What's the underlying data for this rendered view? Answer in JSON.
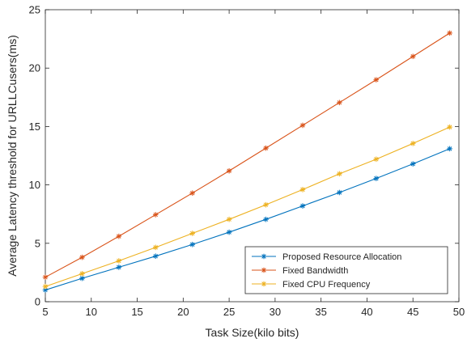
{
  "chart_data": {
    "type": "line",
    "title": "",
    "xlabel": "Task Size(kilo bits)",
    "ylabel": "Average Latency  threshold for URLLCusers(ms)",
    "xlim": [
      5,
      50
    ],
    "ylim": [
      0,
      25
    ],
    "xticks": [
      5,
      10,
      15,
      20,
      25,
      30,
      35,
      40,
      45,
      50
    ],
    "yticks": [
      0,
      5,
      10,
      15,
      20,
      25
    ],
    "grid": false,
    "legend_position": "bottom-right",
    "x": [
      5,
      9,
      13,
      17,
      21,
      25,
      29,
      33,
      37,
      41,
      45,
      49
    ],
    "series": [
      {
        "name": "Proposed Resource Allocation",
        "color": "#0072BD",
        "marker": "asterisk",
        "values": [
          1.0,
          2.0,
          2.95,
          3.9,
          4.9,
          5.95,
          7.05,
          8.2,
          9.35,
          10.55,
          11.8,
          13.1
        ]
      },
      {
        "name": "Fixed Bandwidth",
        "color": "#D95319",
        "marker": "asterisk",
        "values": [
          2.1,
          3.8,
          5.6,
          7.45,
          9.3,
          11.2,
          13.15,
          15.1,
          17.05,
          19.0,
          21.0,
          23.0
        ]
      },
      {
        "name": "Fixed CPU Frequency",
        "color": "#EDB120",
        "marker": "asterisk",
        "values": [
          1.3,
          2.4,
          3.5,
          4.65,
          5.85,
          7.05,
          8.3,
          9.6,
          10.95,
          12.2,
          13.55,
          14.95
        ]
      }
    ]
  }
}
